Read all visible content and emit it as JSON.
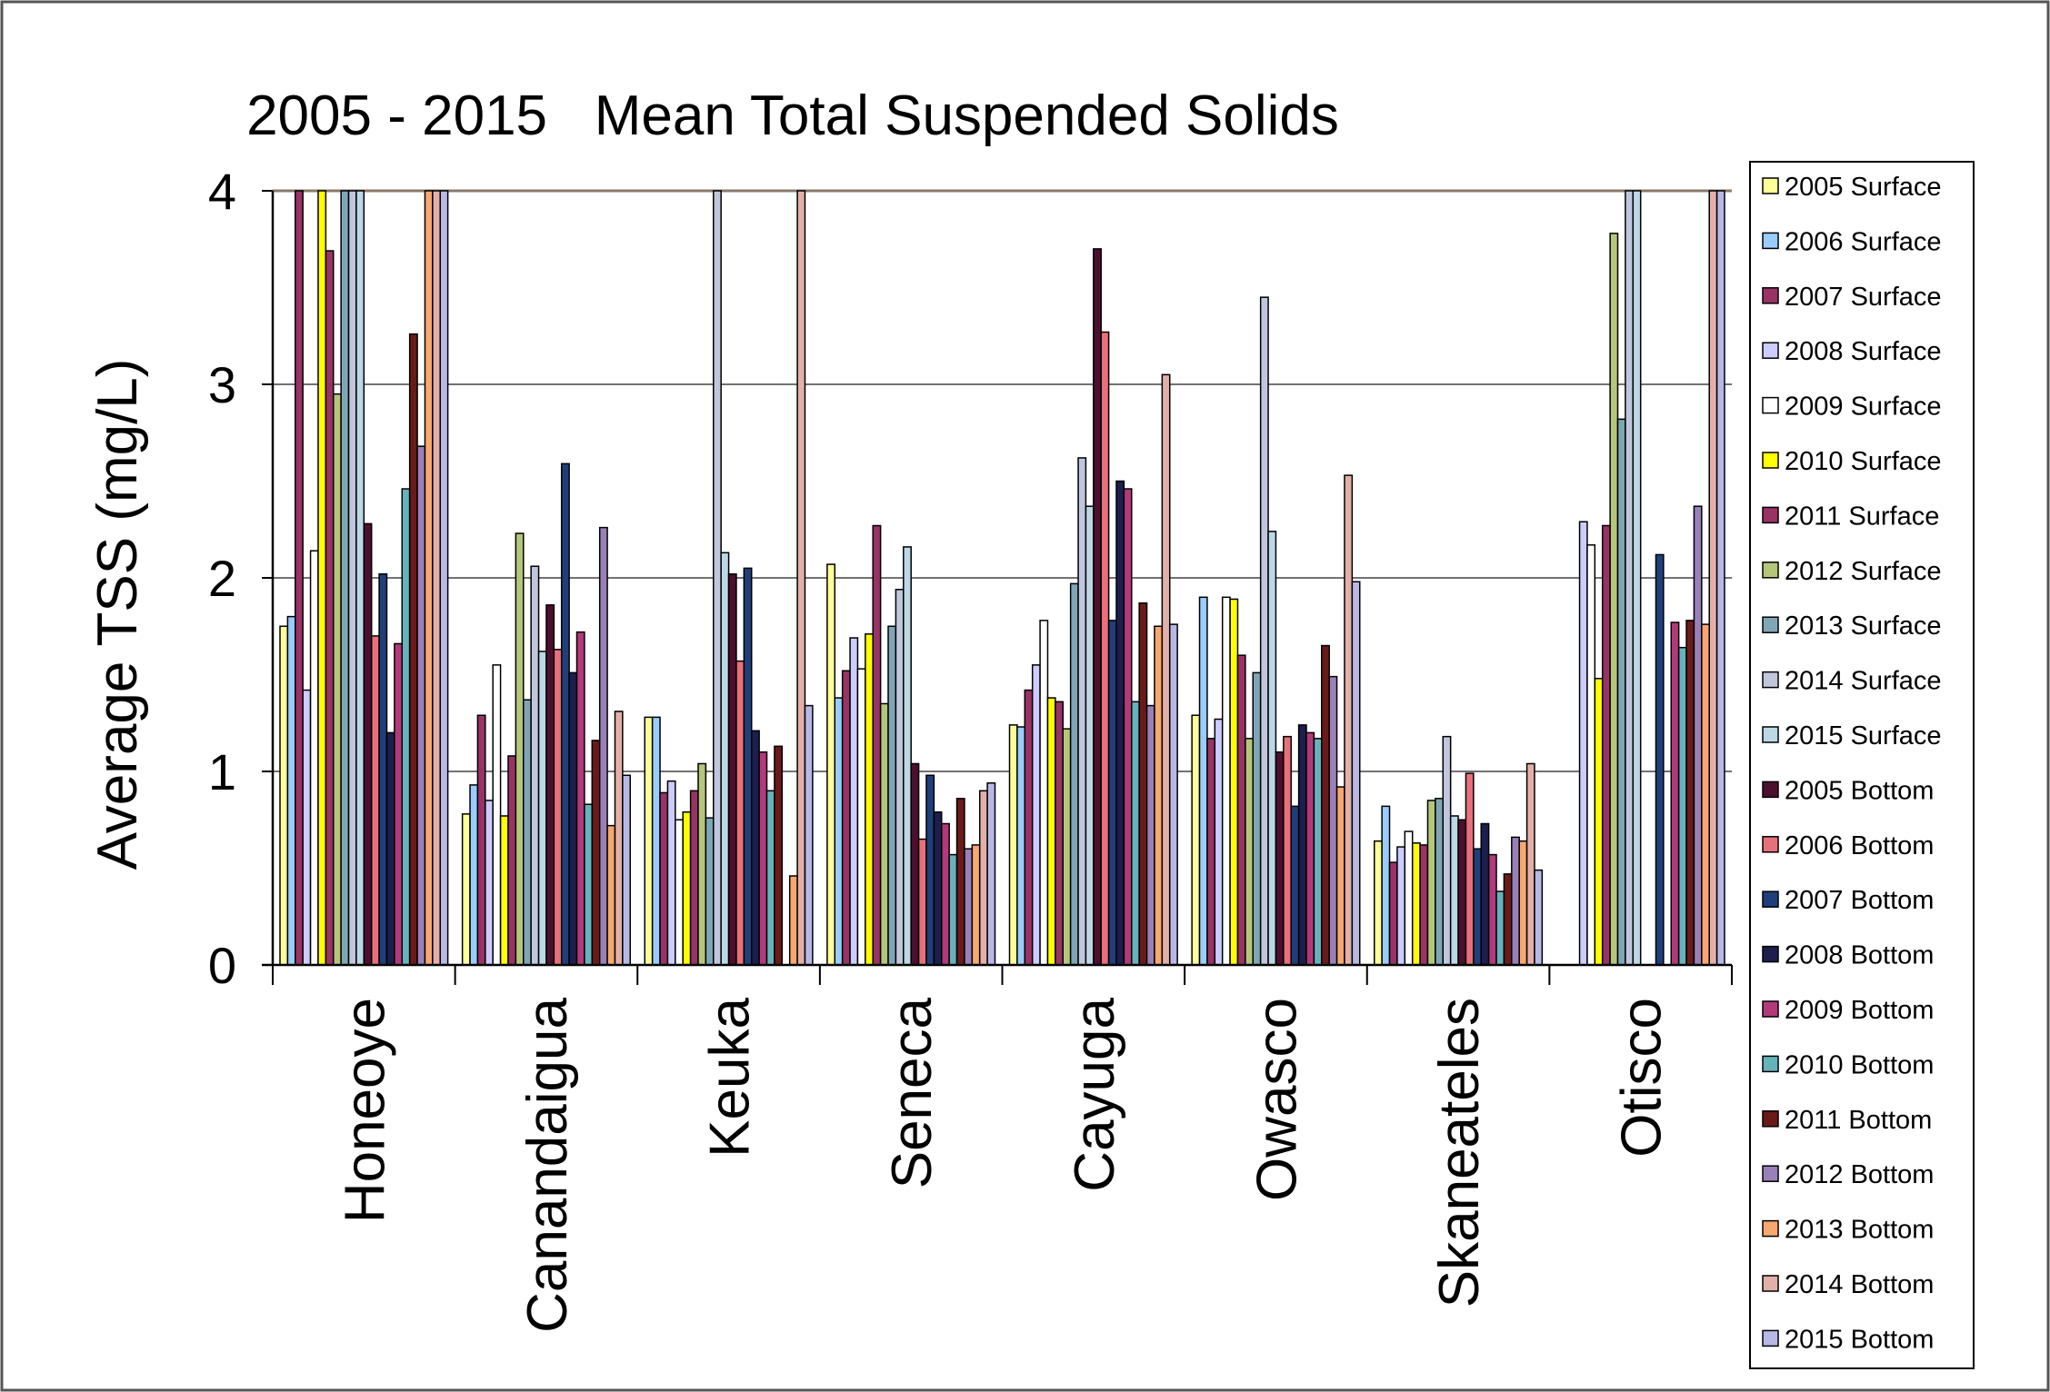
{
  "chart_data": {
    "type": "bar",
    "title": "2005 - 2015   Mean Total Suspended Solids",
    "ylabel": "Average TSS (mg/L)",
    "xlabel": "",
    "ylim": [
      0,
      4
    ],
    "yticks": [
      "0",
      "1",
      "2",
      "3",
      "4"
    ],
    "grid": true,
    "legend_position": "right",
    "categories": [
      "Honeoye",
      "Canandaigua",
      "Keuka",
      "Seneca",
      "Cayuga",
      "Owasco",
      "Skaneateles",
      "Otisco"
    ],
    "series": [
      {
        "name": "2005 Surface",
        "color": "#ffff99",
        "values": [
          1.75,
          0.78,
          1.28,
          2.07,
          1.24,
          1.29,
          0.64,
          null
        ]
      },
      {
        "name": "2006 Surface",
        "color": "#99ccff",
        "values": [
          1.8,
          0.93,
          1.28,
          1.38,
          1.23,
          1.9,
          0.82,
          null
        ]
      },
      {
        "name": "2007 Surface",
        "color": "#993366",
        "values": [
          4.0,
          1.29,
          0.89,
          1.52,
          1.42,
          1.17,
          0.53,
          null
        ]
      },
      {
        "name": "2008 Surface",
        "color": "#ccccff",
        "values": [
          1.42,
          0.85,
          0.95,
          1.69,
          1.55,
          1.27,
          0.61,
          2.29
        ]
      },
      {
        "name": "2009 Surface",
        "color": "#ffffff",
        "values": [
          2.14,
          1.55,
          0.75,
          1.53,
          1.78,
          1.9,
          0.69,
          2.17
        ]
      },
      {
        "name": "2010 Surface",
        "color": "#ffff00",
        "values": [
          4.0,
          0.77,
          0.79,
          1.71,
          1.38,
          1.89,
          0.63,
          1.48
        ]
      },
      {
        "name": "2011 Surface",
        "color": "#993366",
        "values": [
          3.69,
          1.08,
          0.9,
          2.27,
          1.36,
          1.6,
          0.62,
          2.27
        ]
      },
      {
        "name": "2012 Surface",
        "color": "#b3c67a",
        "values": [
          2.95,
          2.23,
          1.04,
          1.35,
          1.22,
          1.17,
          0.85,
          3.78
        ]
      },
      {
        "name": "2013 Surface",
        "color": "#7fa6b6",
        "values": [
          4.0,
          1.37,
          0.76,
          1.75,
          1.97,
          1.51,
          0.86,
          2.82
        ]
      },
      {
        "name": "2014 Surface",
        "color": "#c0c6dc",
        "values": [
          4.0,
          2.06,
          4.0,
          1.94,
          2.62,
          3.45,
          1.18,
          4.0
        ]
      },
      {
        "name": "2015 Surface",
        "color": "#bcd8e6",
        "values": [
          4.0,
          1.62,
          2.13,
          2.16,
          2.37,
          2.24,
          0.77,
          4.0
        ]
      },
      {
        "name": "2005 Bottom",
        "color": "#4d0f2e",
        "values": [
          2.28,
          1.86,
          2.02,
          1.04,
          3.7,
          1.1,
          0.75,
          null
        ]
      },
      {
        "name": "2006 Bottom",
        "color": "#e8707a",
        "values": [
          1.7,
          1.63,
          1.57,
          0.65,
          3.27,
          1.18,
          0.99,
          null
        ]
      },
      {
        "name": "2007 Bottom",
        "color": "#1f3f7a",
        "values": [
          2.02,
          2.59,
          2.05,
          0.98,
          1.78,
          0.82,
          0.6,
          2.12
        ]
      },
      {
        "name": "2008 Bottom",
        "color": "#1c1f4d",
        "values": [
          1.2,
          1.51,
          1.21,
          0.79,
          2.5,
          1.24,
          0.73,
          null
        ]
      },
      {
        "name": "2009 Bottom",
        "color": "#b23a7a",
        "values": [
          1.66,
          1.72,
          1.1,
          0.73,
          2.46,
          1.2,
          0.57,
          1.77
        ]
      },
      {
        "name": "2010 Bottom",
        "color": "#66b3bb",
        "values": [
          2.46,
          0.83,
          0.9,
          0.57,
          1.36,
          1.17,
          0.38,
          1.64
        ]
      },
      {
        "name": "2011 Bottom",
        "color": "#6b1a1a",
        "values": [
          3.26,
          1.16,
          1.13,
          0.86,
          1.87,
          1.65,
          0.47,
          1.78
        ]
      },
      {
        "name": "2012 Bottom",
        "color": "#9a80b8",
        "values": [
          2.68,
          2.26,
          null,
          0.6,
          1.34,
          1.49,
          0.66,
          2.37
        ]
      },
      {
        "name": "2013 Bottom",
        "color": "#f6a86f",
        "values": [
          4.0,
          0.72,
          0.46,
          0.62,
          1.75,
          0.92,
          0.64,
          1.76
        ]
      },
      {
        "name": "2014 Bottom",
        "color": "#e2b0a8",
        "values": [
          4.0,
          1.31,
          4.0,
          0.9,
          3.05,
          2.53,
          1.04,
          4.0
        ]
      },
      {
        "name": "2015 Bottom",
        "color": "#b7b8e6",
        "values": [
          4.0,
          0.98,
          1.34,
          0.94,
          1.76,
          1.98,
          0.49,
          4.0
        ]
      }
    ]
  }
}
